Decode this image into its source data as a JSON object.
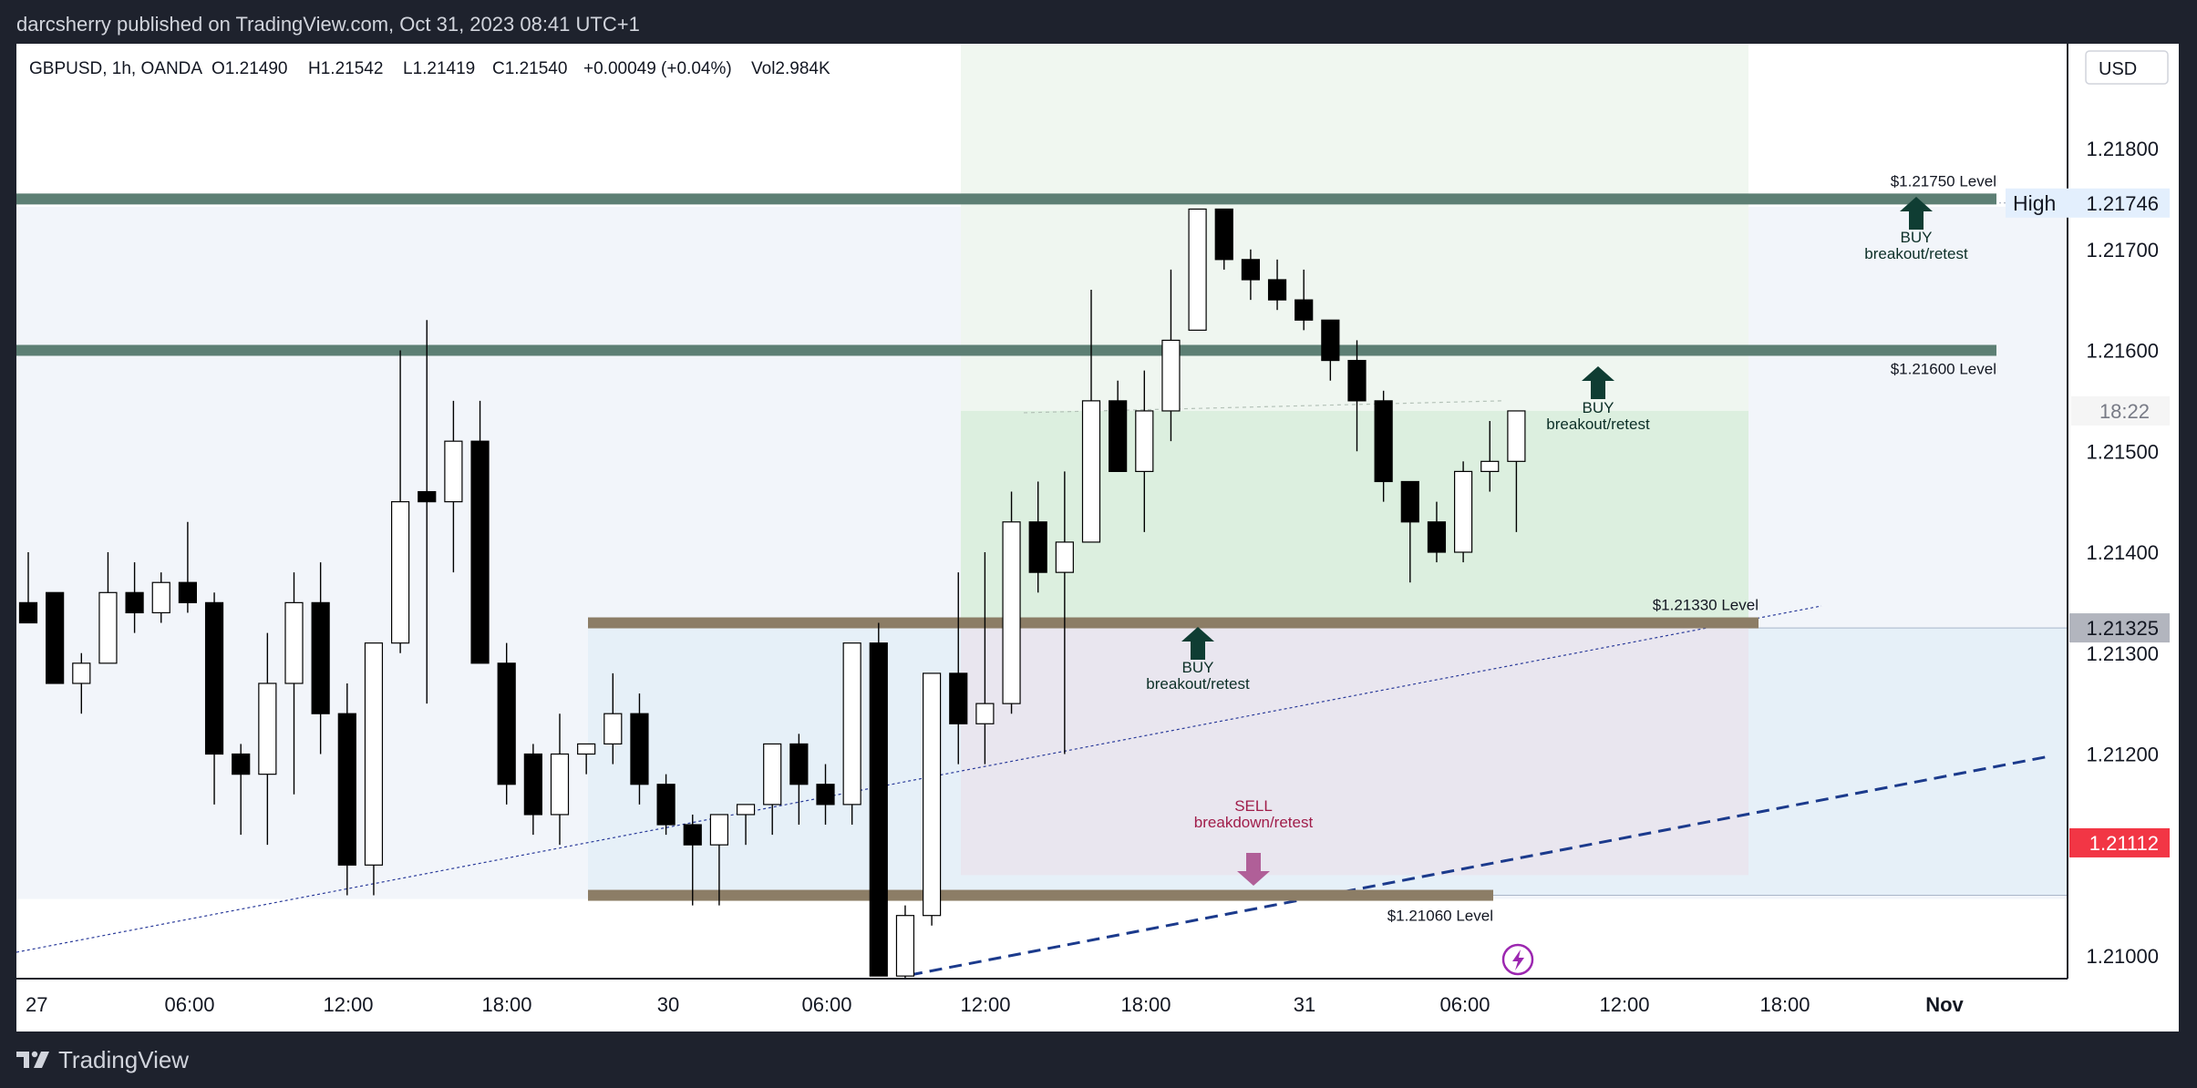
{
  "header": {
    "publisher": "darcsherry published on TradingView.com, Oct 31, 2023 08:41 UTC+1"
  },
  "legend": {
    "symbol": "GBPUSD, 1h, OANDA",
    "open": "O1.21490",
    "high": "H1.21542",
    "low": "L1.21419",
    "close": "C1.21540",
    "change": "+0.00049 (+0.04%)",
    "volume": "Vol2.984K"
  },
  "currency_button": "USD",
  "footer": {
    "brand": "TradingView"
  },
  "colors": {
    "up_fill": "#ffffff",
    "down_fill": "#000000",
    "level_green": "#5d7f74",
    "level_brown": "#8c7d66",
    "buy_arrow": "#0f3d33",
    "sell_arrow": "#b05f98",
    "price_tag_red": "#f23645",
    "price_tag_grey": "#b2b5be",
    "high_tag": "#e3effd",
    "trend_blue": "#1b3a8c"
  },
  "chart_data": {
    "type": "candlestick",
    "x_axis_labels": [
      "27",
      "06:00",
      "12:00",
      "18:00",
      "30",
      "06:00",
      "12:00",
      "18:00",
      "31",
      "06:00",
      "12:00",
      "18:00",
      "Nov"
    ],
    "y_axis_labels": [
      "1.21800",
      "1.21700",
      "1.21600",
      "1.21500",
      "1.21400",
      "1.21300",
      "1.21200",
      "1.21000"
    ],
    "ylim": [
      1.20975,
      1.21905
    ],
    "candles": [
      {
        "o": 1.2135,
        "h": 1.214,
        "l": 1.2133,
        "c": 1.2133
      },
      {
        "o": 1.2136,
        "h": 1.2136,
        "l": 1.2127,
        "c": 1.2127
      },
      {
        "o": 1.2127,
        "h": 1.213,
        "l": 1.2124,
        "c": 1.2129
      },
      {
        "o": 1.2129,
        "h": 1.214,
        "l": 1.2129,
        "c": 1.2136
      },
      {
        "o": 1.2136,
        "h": 1.2139,
        "l": 1.2132,
        "c": 1.2134
      },
      {
        "o": 1.2134,
        "h": 1.2138,
        "l": 1.2133,
        "c": 1.2137
      },
      {
        "o": 1.2137,
        "h": 1.2143,
        "l": 1.2134,
        "c": 1.2135
      },
      {
        "o": 1.2135,
        "h": 1.2136,
        "l": 1.2115,
        "c": 1.212
      },
      {
        "o": 1.212,
        "h": 1.2121,
        "l": 1.2112,
        "c": 1.2118
      },
      {
        "o": 1.2118,
        "h": 1.2132,
        "l": 1.2111,
        "c": 1.2127
      },
      {
        "o": 1.2127,
        "h": 1.2138,
        "l": 1.2116,
        "c": 1.2135
      },
      {
        "o": 1.2135,
        "h": 1.2139,
        "l": 1.212,
        "c": 1.2124
      },
      {
        "o": 1.2124,
        "h": 1.2127,
        "l": 1.2106,
        "c": 1.2109
      },
      {
        "o": 1.2109,
        "h": 1.2131,
        "l": 1.2106,
        "c": 1.2131
      },
      {
        "o": 1.2131,
        "h": 1.216,
        "l": 1.213,
        "c": 1.2145
      },
      {
        "o": 1.2146,
        "h": 1.2163,
        "l": 1.2125,
        "c": 1.2145
      },
      {
        "o": 1.2145,
        "h": 1.2155,
        "l": 1.2138,
        "c": 1.2151
      },
      {
        "o": 1.2151,
        "h": 1.2155,
        "l": 1.2129,
        "c": 1.2129
      },
      {
        "o": 1.2129,
        "h": 1.2131,
        "l": 1.2115,
        "c": 1.2117
      },
      {
        "o": 1.212,
        "h": 1.2121,
        "l": 1.2112,
        "c": 1.2114
      },
      {
        "o": 1.2114,
        "h": 1.2124,
        "l": 1.2111,
        "c": 1.212
      },
      {
        "o": 1.212,
        "h": 1.2121,
        "l": 1.2118,
        "c": 1.2121
      },
      {
        "o": 1.2121,
        "h": 1.2128,
        "l": 1.2119,
        "c": 1.2124
      },
      {
        "o": 1.2124,
        "h": 1.2126,
        "l": 1.2115,
        "c": 1.2117
      },
      {
        "o": 1.2117,
        "h": 1.2118,
        "l": 1.2112,
        "c": 1.2113
      },
      {
        "o": 1.2113,
        "h": 1.2114,
        "l": 1.2105,
        "c": 1.2111
      },
      {
        "o": 1.2111,
        "h": 1.2114,
        "l": 1.2105,
        "c": 1.2114
      },
      {
        "o": 1.2114,
        "h": 1.2115,
        "l": 1.2111,
        "c": 1.2115
      },
      {
        "o": 1.2115,
        "h": 1.2121,
        "l": 1.2112,
        "c": 1.2121
      },
      {
        "o": 1.2121,
        "h": 1.2122,
        "l": 1.2113,
        "c": 1.2117
      },
      {
        "o": 1.2117,
        "h": 1.2119,
        "l": 1.2113,
        "c": 1.2115
      },
      {
        "o": 1.2115,
        "h": 1.2131,
        "l": 1.2113,
        "c": 1.2131
      },
      {
        "o": 1.2131,
        "h": 1.2133,
        "l": 1.2098,
        "c": 1.2098
      },
      {
        "o": 1.2098,
        "h": 1.2105,
        "l": 1.2097,
        "c": 1.2104
      },
      {
        "o": 1.2104,
        "h": 1.2128,
        "l": 1.2103,
        "c": 1.2128
      },
      {
        "o": 1.2128,
        "h": 1.2138,
        "l": 1.2119,
        "c": 1.2123
      },
      {
        "o": 1.2123,
        "h": 1.214,
        "l": 1.2119,
        "c": 1.2125
      },
      {
        "o": 1.2125,
        "h": 1.2146,
        "l": 1.2124,
        "c": 1.2143
      },
      {
        "o": 1.2143,
        "h": 1.2147,
        "l": 1.2136,
        "c": 1.2138
      },
      {
        "o": 1.2138,
        "h": 1.2148,
        "l": 1.212,
        "c": 1.2141
      },
      {
        "o": 1.2141,
        "h": 1.2166,
        "l": 1.2141,
        "c": 1.2155
      },
      {
        "o": 1.2155,
        "h": 1.2157,
        "l": 1.2148,
        "c": 1.2148
      },
      {
        "o": 1.2148,
        "h": 1.2158,
        "l": 1.2142,
        "c": 1.2154
      },
      {
        "o": 1.2154,
        "h": 1.2168,
        "l": 1.2151,
        "c": 1.2161
      },
      {
        "o": 1.2162,
        "h": 1.2174,
        "l": 1.2162,
        "c": 1.2174
      },
      {
        "o": 1.2174,
        "h": 1.2174,
        "l": 1.2168,
        "c": 1.2169
      },
      {
        "o": 1.2169,
        "h": 1.217,
        "l": 1.2165,
        "c": 1.2167
      },
      {
        "o": 1.2167,
        "h": 1.2169,
        "l": 1.2164,
        "c": 1.2165
      },
      {
        "o": 1.2165,
        "h": 1.2168,
        "l": 1.2162,
        "c": 1.2163
      },
      {
        "o": 1.2163,
        "h": 1.2163,
        "l": 1.2157,
        "c": 1.2159
      },
      {
        "o": 1.2159,
        "h": 1.2161,
        "l": 1.215,
        "c": 1.2155
      },
      {
        "o": 1.2155,
        "h": 1.2156,
        "l": 1.2145,
        "c": 1.2147
      },
      {
        "o": 1.2147,
        "h": 1.2147,
        "l": 1.2137,
        "c": 1.2143
      },
      {
        "o": 1.2143,
        "h": 1.2145,
        "l": 1.2139,
        "c": 1.214
      },
      {
        "o": 1.214,
        "h": 1.2149,
        "l": 1.2139,
        "c": 1.2148
      },
      {
        "o": 1.2148,
        "h": 1.2153,
        "l": 1.2146,
        "c": 1.2149
      },
      {
        "o": 1.2149,
        "h": 1.2154,
        "l": 1.2142,
        "c": 1.2154
      }
    ],
    "levels": [
      {
        "label": "$1.21750 Level",
        "price": 1.2175,
        "color": "green"
      },
      {
        "label": "$1.21600 Level",
        "price": 1.216,
        "color": "green"
      },
      {
        "label": "$1.21330 Level",
        "price": 1.2133,
        "color": "brown"
      },
      {
        "label": "$1.21060 Level",
        "price": 1.2106,
        "color": "brown"
      }
    ],
    "annotations": [
      {
        "type": "buy",
        "line1": "BUY",
        "line2": "breakout/retest",
        "price": 1.2175
      },
      {
        "type": "buy",
        "line1": "BUY",
        "line2": "breakout/retest",
        "price": 1.216
      },
      {
        "type": "buy",
        "line1": "BUY",
        "line2": "breakout/retest",
        "price": 1.2133
      },
      {
        "type": "sell",
        "line1": "SELL",
        "line2": "breakdown/retest",
        "price": 1.2106
      }
    ],
    "price_tags": {
      "high_label": "High",
      "high_price": "1.21746",
      "countdown": "18:22",
      "grey_price": "1.21325",
      "red_price": "1.21112"
    }
  }
}
